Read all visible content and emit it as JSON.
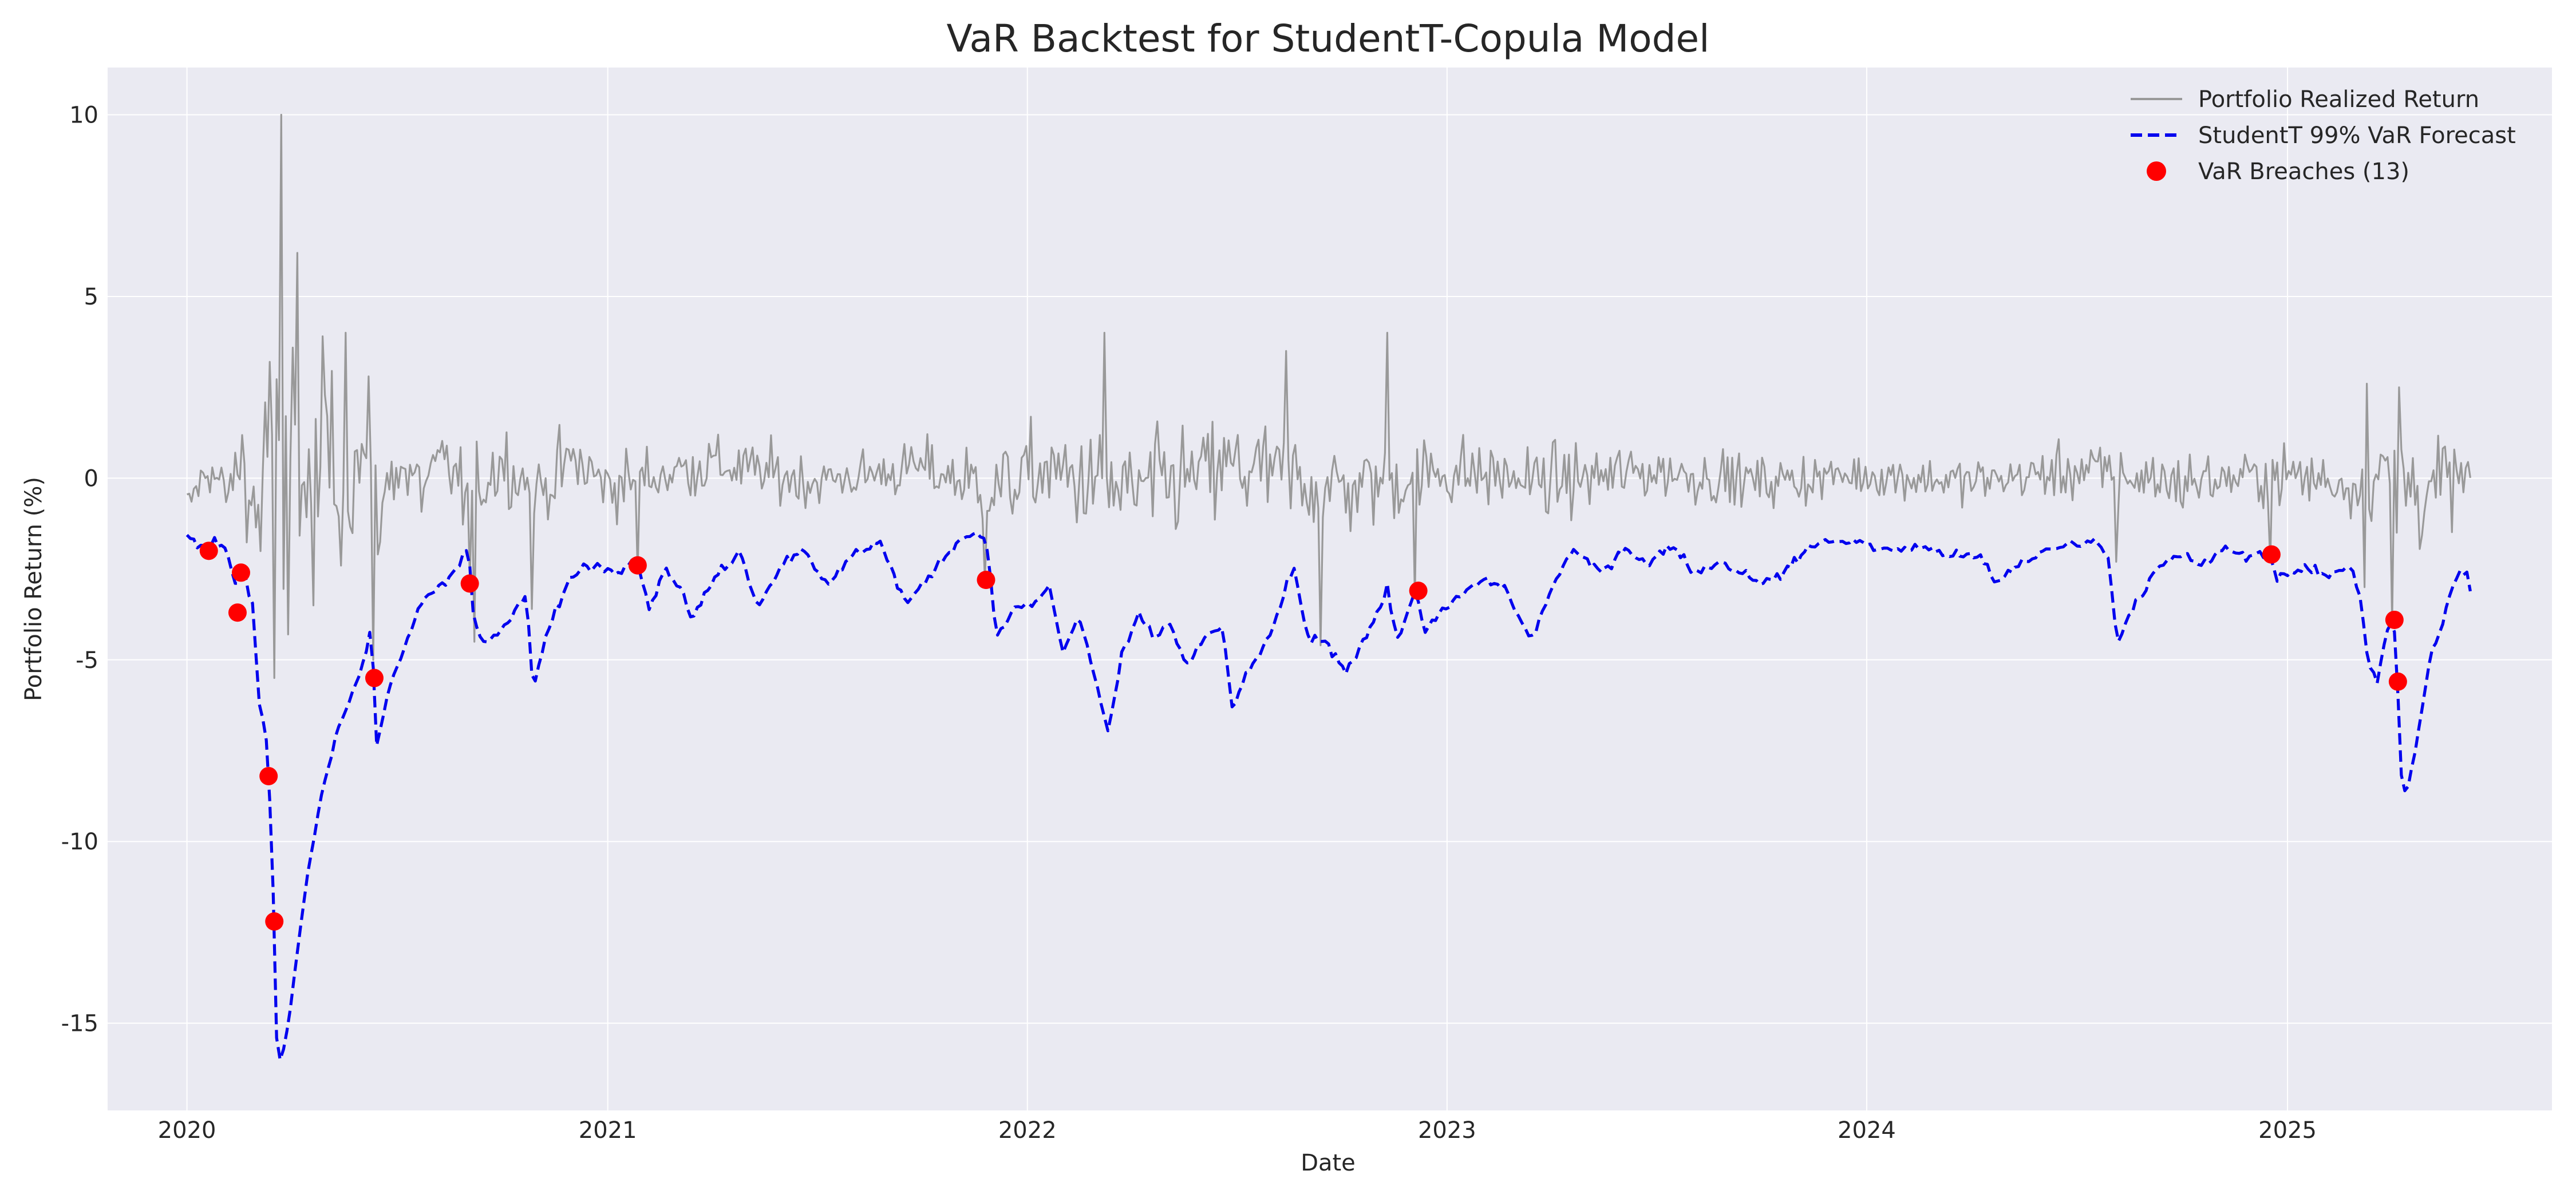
{
  "chart_data": {
    "type": "line",
    "title": "VaR Backtest for StudentT-Copula Model",
    "xlabel": "Date",
    "ylabel": "Portfolio Return (%)",
    "xlim": [
      "2019-10-24",
      "2025-08-19"
    ],
    "ylim": [
      -17.4,
      11.3
    ],
    "x_ticks": [
      "2020-01-01",
      "2021-01-01",
      "2022-01-01",
      "2023-01-01",
      "2024-01-01",
      "2025-01-01"
    ],
    "x_tick_labels": [
      "2020",
      "2021",
      "2022",
      "2023",
      "2024",
      "2025"
    ],
    "y_ticks": [
      10,
      5,
      0,
      -5,
      -10,
      -15
    ],
    "y_tick_labels": [
      "10",
      "5",
      "0",
      "-5",
      "-10",
      "-15"
    ],
    "grid": true,
    "legend_position": "top-right",
    "colors": {
      "background": "#eaeaf2",
      "grid": "#ffffff",
      "realized": "#999999",
      "var": "#0000ee",
      "breach": "#ff0000"
    },
    "series": [
      {
        "name": "Portfolio Realized Return",
        "style": "solid",
        "anchors": [
          [
            "2020-01-01",
            -0.8
          ],
          [
            "2020-01-20",
            0.3
          ],
          [
            "2020-02-05",
            -0.5
          ],
          [
            "2020-02-18",
            0.6
          ],
          [
            "2020-03-01",
            -1.2
          ],
          [
            "2020-03-15",
            1.5
          ],
          [
            "2020-03-25",
            -3.0
          ],
          [
            "2020-04-01",
            2.5
          ],
          [
            "2020-04-15",
            -1.0
          ],
          [
            "2020-05-01",
            1.5
          ],
          [
            "2020-05-15",
            -0.8
          ],
          [
            "2020-06-01",
            0.8
          ],
          [
            "2020-06-15",
            -1.2
          ],
          [
            "2020-07-01",
            0.5
          ],
          [
            "2020-07-20",
            -0.3
          ],
          [
            "2020-08-15",
            0.4
          ],
          [
            "2020-09-01",
            -0.6
          ],
          [
            "2020-10-01",
            0.5
          ],
          [
            "2020-11-01",
            -0.4
          ],
          [
            "2020-12-01",
            0.5
          ],
          [
            "2021-01-01",
            -0.2
          ],
          [
            "2021-04-01",
            0.4
          ],
          [
            "2021-07-01",
            -0.1
          ],
          [
            "2021-10-01",
            0.3
          ],
          [
            "2021-12-01",
            -0.3
          ],
          [
            "2022-01-15",
            0.2
          ],
          [
            "2022-04-01",
            -0.4
          ],
          [
            "2022-07-01",
            0.3
          ],
          [
            "2022-10-01",
            -0.3
          ],
          [
            "2023-01-01",
            0.2
          ],
          [
            "2023-04-01",
            -0.1
          ],
          [
            "2023-07-01",
            0.2
          ],
          [
            "2023-10-01",
            -0.1
          ],
          [
            "2024-01-01",
            0.1
          ],
          [
            "2024-04-01",
            -0.1
          ],
          [
            "2024-07-01",
            0.2
          ],
          [
            "2024-10-01",
            -0.1
          ],
          [
            "2025-01-01",
            0.1
          ],
          [
            "2025-03-01",
            -0.2
          ],
          [
            "2025-04-05",
            0.3
          ],
          [
            "2025-04-25",
            -0.4
          ],
          [
            "2025-06-01",
            0.0
          ]
        ],
        "vol_profile": [
          [
            "2020-01-01",
            0.45
          ],
          [
            "2020-02-15",
            0.7
          ],
          [
            "2020-03-01",
            2.4
          ],
          [
            "2020-03-25",
            3.2
          ],
          [
            "2020-04-15",
            2.4
          ],
          [
            "2020-05-15",
            1.5
          ],
          [
            "2020-07-01",
            1.0
          ],
          [
            "2020-10-01",
            0.85
          ],
          [
            "2021-01-01",
            0.75
          ],
          [
            "2021-06-01",
            0.65
          ],
          [
            "2021-09-01",
            0.55
          ],
          [
            "2021-12-01",
            0.95
          ],
          [
            "2022-03-01",
            1.25
          ],
          [
            "2022-06-15",
            1.25
          ],
          [
            "2022-10-01",
            1.1
          ],
          [
            "2023-01-01",
            0.85
          ],
          [
            "2023-06-01",
            0.7
          ],
          [
            "2023-10-01",
            0.6
          ],
          [
            "2024-01-01",
            0.5
          ],
          [
            "2024-06-01",
            0.55
          ],
          [
            "2024-08-05",
            0.8
          ],
          [
            "2024-12-01",
            0.6
          ],
          [
            "2025-03-01",
            0.7
          ],
          [
            "2025-04-08",
            1.4
          ],
          [
            "2025-06-01",
            0.9
          ]
        ],
        "spikes": [
          [
            "2020-03-13",
            3.2
          ],
          [
            "2020-03-17",
            -5.5
          ],
          [
            "2020-03-24",
            10.0
          ],
          [
            "2020-03-30",
            -4.3
          ],
          [
            "2020-04-06",
            6.2
          ],
          [
            "2020-04-20",
            -3.5
          ],
          [
            "2020-05-18",
            4.0
          ],
          [
            "2020-06-08",
            2.8
          ],
          [
            "2020-06-11",
            -5.0
          ],
          [
            "2020-09-03",
            -2.8
          ],
          [
            "2020-09-08",
            -4.5
          ],
          [
            "2020-10-28",
            -3.6
          ],
          [
            "2021-01-27",
            -2.6
          ],
          [
            "2021-11-26",
            -2.8
          ],
          [
            "2022-03-09",
            4.0
          ],
          [
            "2022-09-13",
            -4.6
          ],
          [
            "2022-08-15",
            3.5
          ],
          [
            "2022-11-10",
            4.0
          ],
          [
            "2022-12-05",
            -3.3
          ],
          [
            "2024-08-05",
            -2.3
          ],
          [
            "2024-12-18",
            -2.3
          ],
          [
            "2025-04-03",
            -4.0
          ],
          [
            "2025-04-07",
            -1.5
          ],
          [
            "2025-04-09",
            2.5
          ],
          [
            "2025-03-10",
            -3.0
          ],
          [
            "2025-03-12",
            2.6
          ]
        ]
      },
      {
        "name": "StudentT 99% VaR Forecast",
        "style": "dashed",
        "anchors": [
          [
            "2020-01-01",
            -1.6
          ],
          [
            "2020-01-15",
            -2.0
          ],
          [
            "2020-01-25",
            -1.7
          ],
          [
            "2020-02-05",
            -2.0
          ],
          [
            "2020-02-12",
            -3.0
          ],
          [
            "2020-02-20",
            -2.6
          ],
          [
            "2020-02-28",
            -3.6
          ],
          [
            "2020-03-03",
            -6.0
          ],
          [
            "2020-03-10",
            -7.2
          ],
          [
            "2020-03-15",
            -10.0
          ],
          [
            "2020-03-19",
            -15.5
          ],
          [
            "2020-03-24",
            -16.0
          ],
          [
            "2020-03-31",
            -14.5
          ],
          [
            "2020-04-10",
            -12.0
          ],
          [
            "2020-04-25",
            -9.0
          ],
          [
            "2020-05-10",
            -7.0
          ],
          [
            "2020-05-25",
            -5.8
          ],
          [
            "2020-06-05",
            -4.8
          ],
          [
            "2020-06-10",
            -4.0
          ],
          [
            "2020-06-13",
            -7.6
          ],
          [
            "2020-06-25",
            -5.8
          ],
          [
            "2020-07-10",
            -4.5
          ],
          [
            "2020-07-25",
            -3.3
          ],
          [
            "2020-08-15",
            -2.8
          ],
          [
            "2020-08-30",
            -2.0
          ],
          [
            "2020-09-02",
            -1.8
          ],
          [
            "2020-09-06",
            -3.8
          ],
          [
            "2020-09-15",
            -4.6
          ],
          [
            "2020-09-30",
            -4.2
          ],
          [
            "2020-10-15",
            -3.6
          ],
          [
            "2020-10-22",
            -3.2
          ],
          [
            "2020-10-28",
            -5.8
          ],
          [
            "2020-11-10",
            -4.2
          ],
          [
            "2020-11-25",
            -3.0
          ],
          [
            "2020-12-10",
            -2.4
          ],
          [
            "2021-01-10",
            -2.5
          ],
          [
            "2021-01-27",
            -2.2
          ],
          [
            "2021-02-05",
            -3.6
          ],
          [
            "2021-02-20",
            -2.5
          ],
          [
            "2021-03-05",
            -3.0
          ],
          [
            "2021-03-15",
            -3.9
          ],
          [
            "2021-04-05",
            -2.7
          ],
          [
            "2021-04-25",
            -2.0
          ],
          [
            "2021-05-12",
            -3.5
          ],
          [
            "2021-06-01",
            -2.4
          ],
          [
            "2021-06-20",
            -1.9
          ],
          [
            "2021-07-12",
            -3.0
          ],
          [
            "2021-07-30",
            -2.2
          ],
          [
            "2021-08-25",
            -1.7
          ],
          [
            "2021-09-18",
            -3.5
          ],
          [
            "2021-10-05",
            -2.8
          ],
          [
            "2021-10-30",
            -1.8
          ],
          [
            "2021-11-15",
            -1.5
          ],
          [
            "2021-11-26",
            -1.6
          ],
          [
            "2021-12-05",
            -4.4
          ],
          [
            "2021-12-20",
            -3.6
          ],
          [
            "2022-01-05",
            -3.5
          ],
          [
            "2022-01-20",
            -3.0
          ],
          [
            "2022-02-01",
            -4.8
          ],
          [
            "2022-02-15",
            -3.8
          ],
          [
            "2022-03-01",
            -5.5
          ],
          [
            "2022-03-12",
            -7.0
          ],
          [
            "2022-03-25",
            -4.8
          ],
          [
            "2022-04-08",
            -3.8
          ],
          [
            "2022-04-22",
            -4.4
          ],
          [
            "2022-05-05",
            -4.0
          ],
          [
            "2022-05-20",
            -5.2
          ],
          [
            "2022-06-01",
            -4.5
          ],
          [
            "2022-06-20",
            -4.1
          ],
          [
            "2022-06-28",
            -6.3
          ],
          [
            "2022-07-15",
            -5.2
          ],
          [
            "2022-08-05",
            -4.0
          ],
          [
            "2022-08-20",
            -2.4
          ],
          [
            "2022-09-01",
            -4.3
          ],
          [
            "2022-09-20",
            -4.6
          ],
          [
            "2022-10-05",
            -5.3
          ],
          [
            "2022-10-25",
            -4.2
          ],
          [
            "2022-11-10",
            -3.1
          ],
          [
            "2022-11-20",
            -4.5
          ],
          [
            "2022-12-05",
            -3.0
          ],
          [
            "2022-12-12",
            -4.2
          ],
          [
            "2023-01-10",
            -3.3
          ],
          [
            "2023-02-01",
            -2.8
          ],
          [
            "2023-02-20",
            -3.0
          ],
          [
            "2023-03-15",
            -4.5
          ],
          [
            "2023-04-05",
            -2.8
          ],
          [
            "2023-04-20",
            -2.0
          ],
          [
            "2023-05-15",
            -2.6
          ],
          [
            "2023-06-05",
            -1.9
          ],
          [
            "2023-06-25",
            -2.4
          ],
          [
            "2023-07-15",
            -1.8
          ],
          [
            "2023-08-05",
            -2.6
          ],
          [
            "2023-08-25",
            -2.3
          ],
          [
            "2023-09-15",
            -2.6
          ],
          [
            "2023-10-05",
            -2.9
          ],
          [
            "2023-10-25",
            -2.5
          ],
          [
            "2023-11-15",
            -1.8
          ],
          [
            "2023-12-20",
            -1.7
          ],
          [
            "2024-01-15",
            -2.0
          ],
          [
            "2024-02-15",
            -1.9
          ],
          [
            "2024-03-15",
            -2.1
          ],
          [
            "2024-04-10",
            -2.2
          ],
          [
            "2024-04-22",
            -2.9
          ],
          [
            "2024-05-15",
            -2.3
          ],
          [
            "2024-06-15",
            -1.9
          ],
          [
            "2024-07-15",
            -1.7
          ],
          [
            "2024-07-28",
            -2.0
          ],
          [
            "2024-08-06",
            -4.5
          ],
          [
            "2024-08-20",
            -3.5
          ],
          [
            "2024-09-10",
            -2.5
          ],
          [
            "2024-10-01",
            -2.1
          ],
          [
            "2024-10-20",
            -2.4
          ],
          [
            "2024-11-10",
            -1.9
          ],
          [
            "2024-11-25",
            -2.2
          ],
          [
            "2024-12-15",
            -2.0
          ],
          [
            "2024-12-22",
            -2.7
          ],
          [
            "2025-01-15",
            -2.5
          ],
          [
            "2025-02-05",
            -2.7
          ],
          [
            "2025-02-25",
            -2.4
          ],
          [
            "2025-03-05",
            -3.2
          ],
          [
            "2025-03-12",
            -5.0
          ],
          [
            "2025-03-20",
            -5.6
          ],
          [
            "2025-03-28",
            -4.2
          ],
          [
            "2025-04-02",
            -3.9
          ],
          [
            "2025-04-05",
            -4.5
          ],
          [
            "2025-04-10",
            -8.2
          ],
          [
            "2025-04-14",
            -8.8
          ],
          [
            "2025-04-22",
            -7.5
          ],
          [
            "2025-05-05",
            -5.0
          ],
          [
            "2025-05-20",
            -3.5
          ],
          [
            "2025-05-30",
            -2.6
          ],
          [
            "2025-06-06",
            -2.6
          ],
          [
            "2025-06-10",
            -3.3
          ]
        ]
      },
      {
        "name": "VaR Breaches (13)",
        "type": "scatter",
        "points": [
          [
            "2020-01-20",
            -2.0
          ],
          [
            "2020-02-17",
            -2.6
          ],
          [
            "2020-02-14",
            -3.7
          ],
          [
            "2020-03-12",
            -8.2
          ],
          [
            "2020-03-17",
            -12.2
          ],
          [
            "2020-06-12",
            -5.5
          ],
          [
            "2020-09-03",
            -2.9
          ],
          [
            "2021-01-27",
            -2.4
          ],
          [
            "2021-11-26",
            -2.8
          ],
          [
            "2022-12-07",
            -3.1
          ],
          [
            "2024-12-18",
            -2.1
          ],
          [
            "2025-04-04",
            -3.9
          ],
          [
            "2025-04-07",
            -5.6
          ]
        ]
      }
    ]
  }
}
